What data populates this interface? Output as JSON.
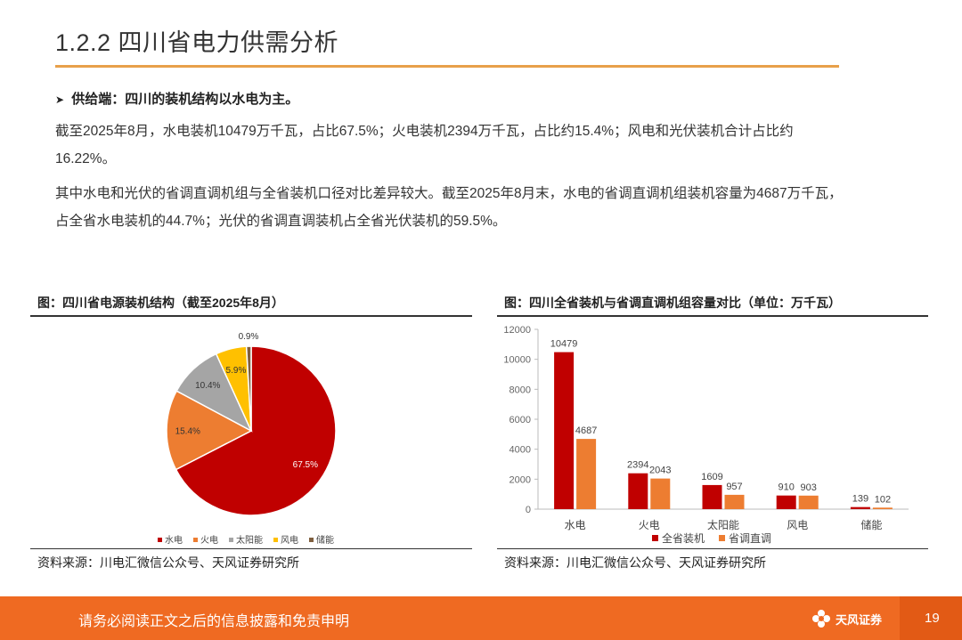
{
  "header": {
    "title": "1.2.2 四川省电力供需分析"
  },
  "body": {
    "bullet": "供给端：四川的装机结构以水电为主。",
    "para1_line1": "截至2025年8月，水电装机10479万千瓦，占比67.5%；火电装机2394万千瓦，占比约15.4%；风电和光伏装机合计占比约",
    "para1_line2": "16.22%。",
    "para2_line1": "其中水电和光伏的省调直调机组与全省装机口径对比差异较大。截至2025年8月末，水电的省调直调机组装机容量为4687万千瓦，",
    "para2_line2": "占全省水电装机的44.7%；光伏的省调直调装机占全省光伏装机的59.5%。"
  },
  "left_panel": {
    "title": "图：四川省电源装机结构（截至2025年8月）",
    "source": "资料来源：川电汇微信公众号、天风证券研究所"
  },
  "right_panel": {
    "title": "图：四川全省装机与省调直调机组容量对比（单位：万千瓦）",
    "source": "资料来源：川电汇微信公众号、天风证券研究所"
  },
  "chart_data": [
    {
      "type": "pie",
      "title": "图：四川省电源装机结构（截至2025年8月）",
      "slices": [
        {
          "label": "水电",
          "value": 67.5,
          "display": "67.5%",
          "color": "#c00000"
        },
        {
          "label": "火电",
          "value": 15.4,
          "display": "15.4%",
          "color": "#ed7d31"
        },
        {
          "label": "太阳能",
          "value": 10.4,
          "display": "10.4%",
          "color": "#a5a5a5"
        },
        {
          "label": "风电",
          "value": 5.9,
          "display": "5.9%",
          "color": "#ffc000"
        },
        {
          "label": "储能",
          "value": 0.9,
          "display": "0.9%",
          "color": "#7f5f3f"
        }
      ],
      "legend_position": "bottom"
    },
    {
      "type": "bar",
      "title": "图：四川全省装机与省调直调机组容量对比（单位：万千瓦）",
      "categories": [
        "水电",
        "火电",
        "太阳能",
        "风电",
        "储能"
      ],
      "series": [
        {
          "name": "全省装机",
          "color": "#c00000",
          "values": [
            10479,
            2394,
            1609,
            910,
            139
          ]
        },
        {
          "name": "省调直调",
          "color": "#ed7d31",
          "values": [
            4687,
            2043,
            957,
            903,
            102
          ]
        }
      ],
      "ylim": [
        0,
        12000
      ],
      "yticks": [
        "0",
        "2000",
        "4000",
        "6000",
        "8000",
        "10000",
        "12000"
      ],
      "legend_position": "bottom",
      "grid": false
    }
  ],
  "footer": {
    "disclaimer": "请务必阅读正文之后的信息披露和免责申明",
    "brand": "天风证券",
    "page": "19",
    "brand_color": "#ef6a22"
  }
}
